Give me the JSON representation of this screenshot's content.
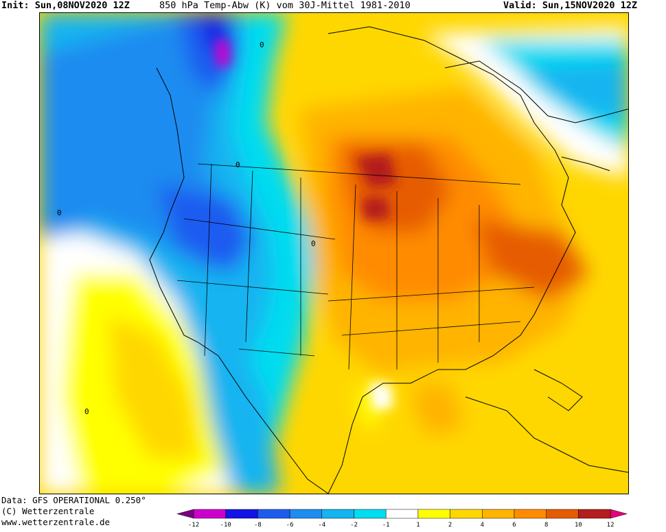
{
  "header": {
    "init": "Init: Sun,08NOV2020 12Z",
    "title": "850 hPa Temp-Abw (K) vom 30J-Mittel 1981-2010",
    "valid": "Valid: Sun,15NOV2020 12Z"
  },
  "footer": {
    "data_source": "Data: GFS OPERATIONAL 0.250°",
    "copyright": "(C) Wetterzentrale",
    "website": "www.wetterzentrale.de"
  },
  "map": {
    "contour_zero_label": "0"
  },
  "legend": {
    "ticks": [
      "-12",
      "-10",
      "-8",
      "-6",
      "-4",
      "-2",
      "-1",
      "1",
      "2",
      "4",
      "6",
      "8",
      "10",
      "12"
    ],
    "colors": [
      "#7a0080",
      "#cc00cc",
      "#1414e6",
      "#1e5cf0",
      "#1e8cf0",
      "#14b4f0",
      "#00dcf0",
      "#ffffff",
      "#ffff00",
      "#ffd700",
      "#ffb400",
      "#ff8c00",
      "#e65c00",
      "#b41e1e",
      "#e6007a"
    ],
    "extend_colors": {
      "low": "#7a0080",
      "high": "#e6007a"
    }
  },
  "colors": {
    "land_outline": "#000000",
    "frame": "#000000"
  }
}
